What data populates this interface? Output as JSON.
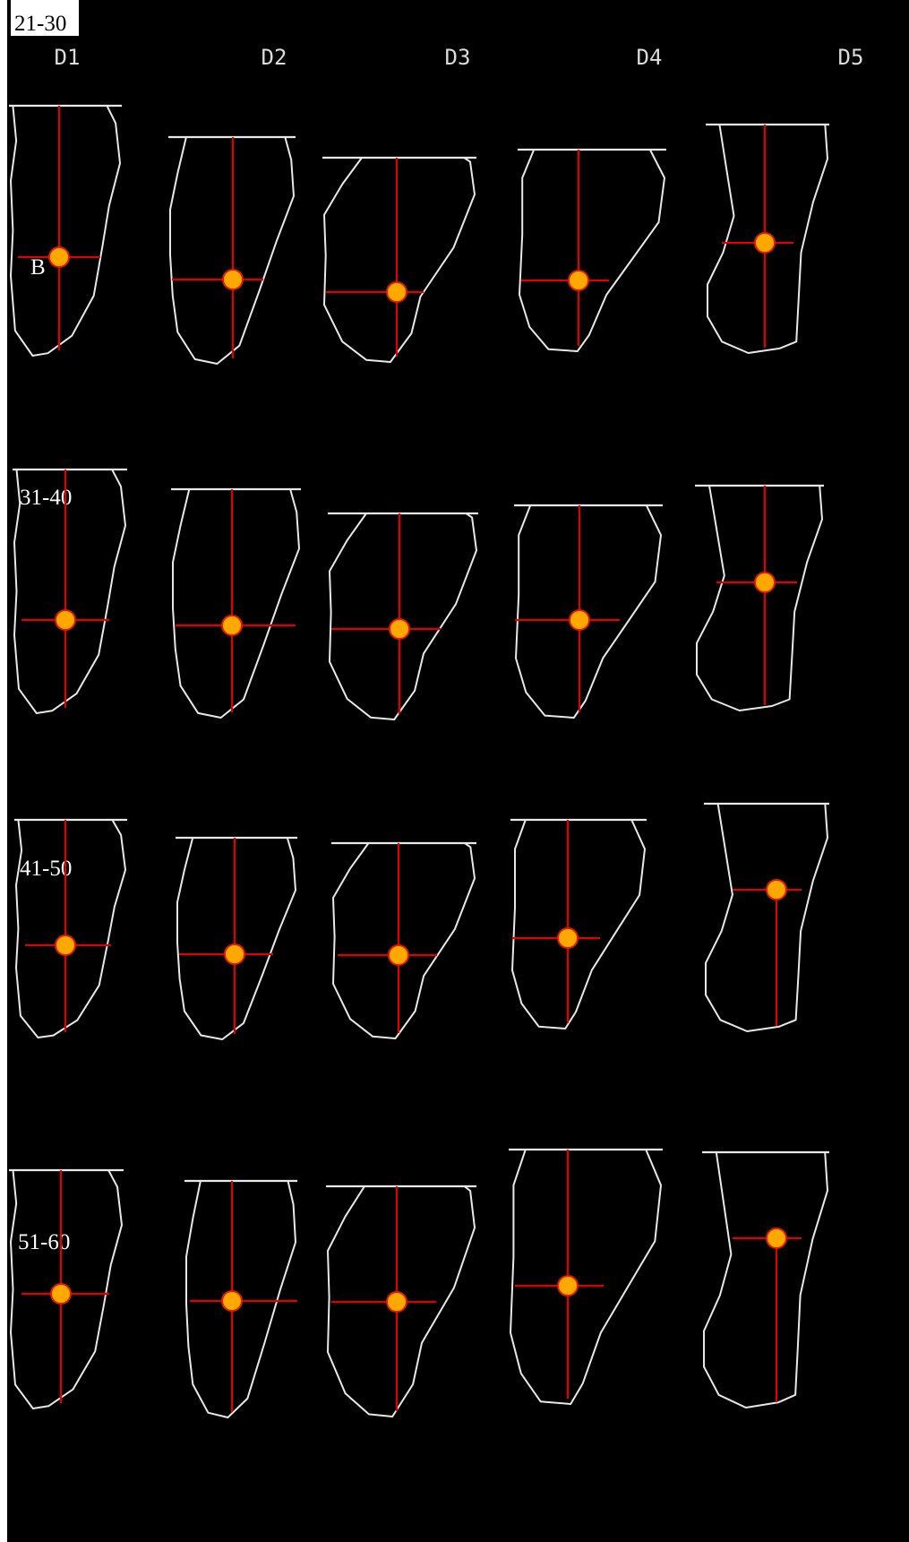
{
  "columns": [
    "D1",
    "D2",
    "D3",
    "D4",
    "D5"
  ],
  "rows": [
    "21-30",
    "31-40",
    "41-50",
    "51-60"
  ],
  "point_label": "B",
  "colors": {
    "background": "#000000",
    "outline": "#e8e8e8",
    "axis_line": "#e00000",
    "point_fill": "#ffa800",
    "point_stroke": "#e01b00"
  }
}
